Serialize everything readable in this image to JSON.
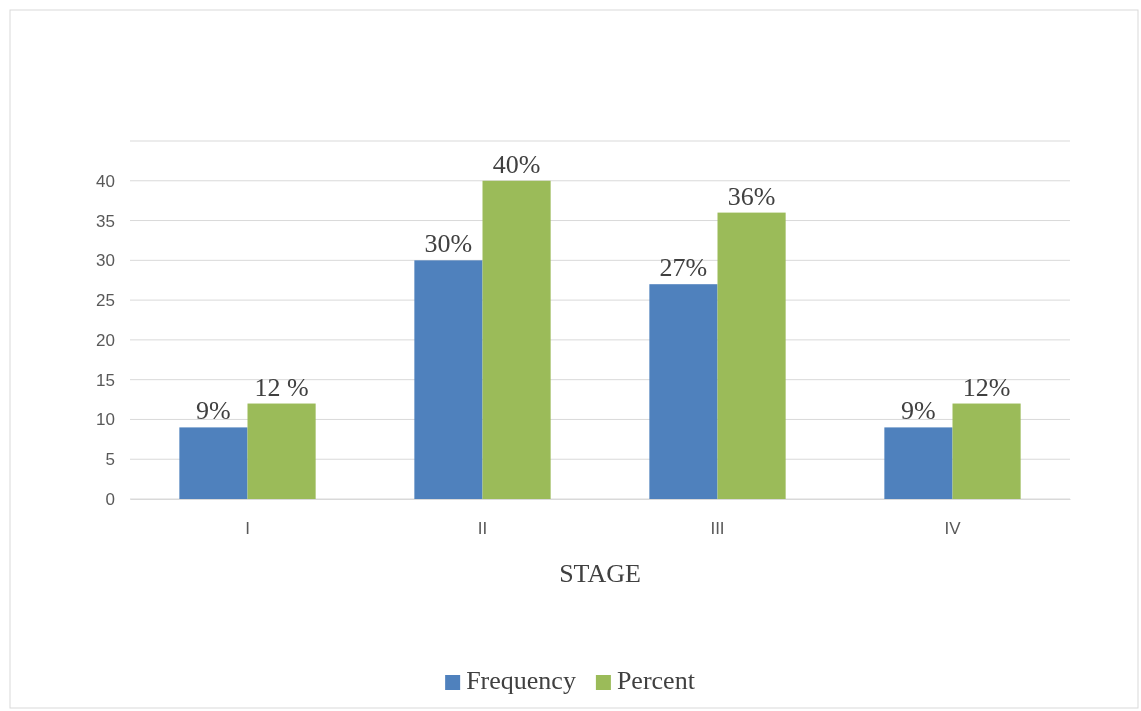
{
  "chart_data": {
    "type": "bar",
    "xlabel": "STAGE",
    "categories": [
      "I",
      "II",
      "III",
      "IV"
    ],
    "series": [
      {
        "name": "Frequency",
        "color": "#4f81bd",
        "values": [
          9,
          30,
          27,
          9
        ],
        "value_labels": [
          "9%",
          "30%",
          "27%",
          "9%"
        ]
      },
      {
        "name": "Percent",
        "color": "#9bbb59",
        "values": [
          12,
          40,
          36,
          12
        ],
        "value_labels": [
          "12 %",
          "40%",
          "36%",
          "12%"
        ]
      }
    ],
    "ylim": [
      0,
      45
    ],
    "yticks": [
      0,
      5,
      10,
      15,
      20,
      25,
      30,
      35,
      40
    ],
    "grid": "y",
    "legend": "bottom"
  }
}
